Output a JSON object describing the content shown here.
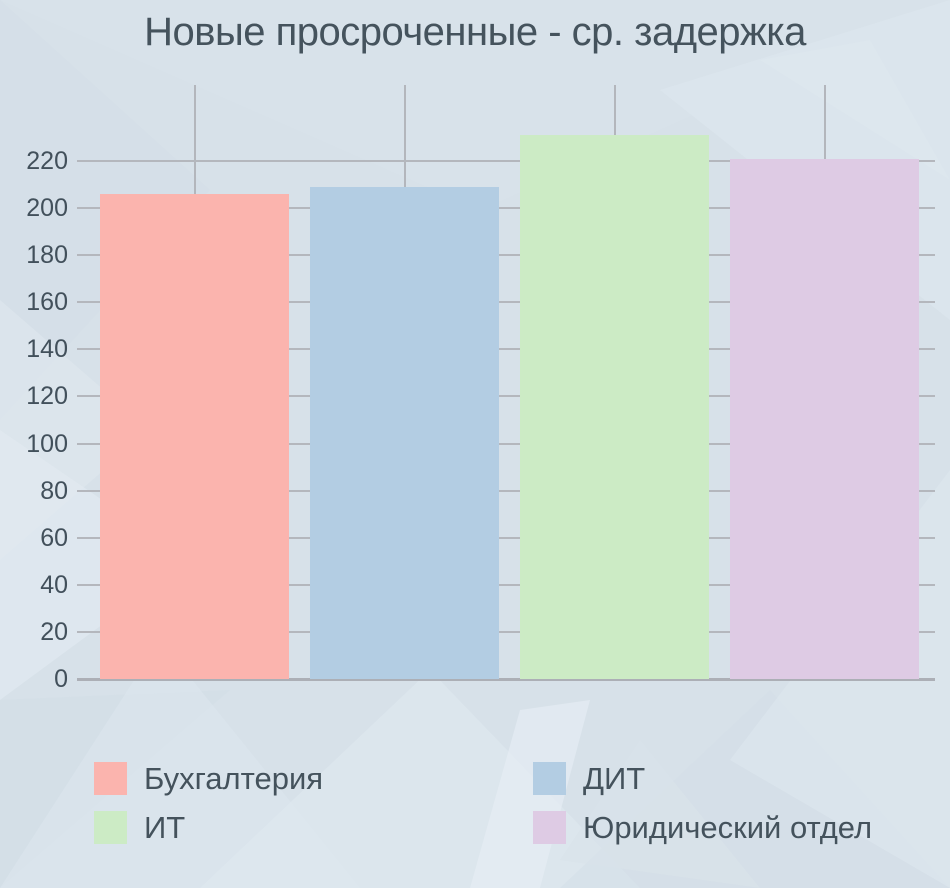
{
  "title": "Новые просроченные - ср. задержка",
  "colors": {
    "background": "#d7e1e9",
    "title_text": "#45535d",
    "tick_text": "#42505b",
    "gridline": "#b4b7bd",
    "axis_line": "#acafb6"
  },
  "chart_data": {
    "type": "bar",
    "title": "Новые просроченные - ср. задержка",
    "categories": [
      "Бухгалтерия",
      "ДИТ",
      "ИТ",
      "Юридический отдел"
    ],
    "values": [
      206,
      209,
      231,
      221
    ],
    "bar_colors": [
      "#FBB4AE",
      "#B3CDE3",
      "#CCEBC5",
      "#DECBE4"
    ],
    "xlabel": "",
    "ylabel": "",
    "ylim": [
      0,
      240
    ],
    "yticks": [
      0,
      20,
      40,
      60,
      80,
      100,
      120,
      140,
      160,
      180,
      200,
      220
    ],
    "grid": true,
    "legend_position": "bottom",
    "legend": [
      {
        "label": "Бухгалтерия",
        "color": "#FBB4AE"
      },
      {
        "label": "ДИТ",
        "color": "#B3CDE3"
      },
      {
        "label": "ИТ",
        "color": "#CCEBC5"
      },
      {
        "label": "Юридический отдел",
        "color": "#DECBE4"
      }
    ]
  }
}
